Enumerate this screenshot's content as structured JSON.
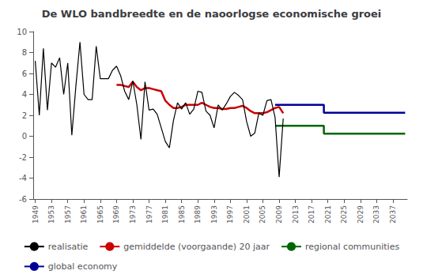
{
  "chart_data": {
    "type": "line",
    "title": "De WLO bandbreedte en de naoorlogse economische groei",
    "series": [
      {
        "name": "realisatie",
        "color": "#000000",
        "x": [
          1949,
          1950,
          1951,
          1952,
          1953,
          1954,
          1955,
          1956,
          1957,
          1958,
          1959,
          1960,
          1961,
          1962,
          1963,
          1964,
          1965,
          1966,
          1967,
          1968,
          1969,
          1970,
          1971,
          1972,
          1973,
          1974,
          1975,
          1976,
          1977,
          1978,
          1979,
          1980,
          1981,
          1982,
          1983,
          1984,
          1985,
          1986,
          1987,
          1988,
          1989,
          1990,
          1991,
          1992,
          1993,
          1994,
          1995,
          1996,
          1997,
          1998,
          1999,
          2000,
          2001,
          2002,
          2003,
          2004,
          2005,
          2006,
          2007,
          2008,
          2009,
          2010
        ],
        "values": [
          7.2,
          2.0,
          8.4,
          2.5,
          7.0,
          6.6,
          7.5,
          4.0,
          7.0,
          0.1,
          4.8,
          9.0,
          4.0,
          3.5,
          3.5,
          8.6,
          5.5,
          5.5,
          5.5,
          6.3,
          6.7,
          5.8,
          4.3,
          3.5,
          5.3,
          3.0,
          -0.3,
          5.2,
          2.5,
          2.6,
          2.1,
          0.8,
          -0.5,
          -1.1,
          1.5,
          3.2,
          2.6,
          3.2,
          2.1,
          2.6,
          4.3,
          4.2,
          2.4,
          2.0,
          0.8,
          3.0,
          2.5,
          3.1,
          3.8,
          4.2,
          3.9,
          3.5,
          1.4,
          0.0,
          0.3,
          2.2,
          2.0,
          3.4,
          3.5,
          1.8,
          -3.9,
          1.7
        ]
      },
      {
        "name": "gemiddelde (voorgaande) 20 jaar",
        "color": "#cc0000",
        "x": [
          1969,
          1970,
          1971,
          1972,
          1973,
          1974,
          1975,
          1976,
          1977,
          1978,
          1979,
          1980,
          1981,
          1982,
          1983,
          1984,
          1985,
          1986,
          1987,
          1988,
          1989,
          1990,
          1991,
          1992,
          1993,
          1994,
          1995,
          1996,
          1997,
          1998,
          1999,
          2000,
          2001,
          2002,
          2003,
          2004,
          2005,
          2006,
          2007,
          2008,
          2009,
          2010
        ],
        "values": [
          4.9,
          4.9,
          4.8,
          4.7,
          5.2,
          4.7,
          4.4,
          4.6,
          4.6,
          4.5,
          4.4,
          4.3,
          3.4,
          3.0,
          2.7,
          2.7,
          2.8,
          3.0,
          3.0,
          3.0,
          3.0,
          3.2,
          3.0,
          2.8,
          2.7,
          2.7,
          2.6,
          2.6,
          2.7,
          2.7,
          2.8,
          2.9,
          2.7,
          2.4,
          2.2,
          2.2,
          2.2,
          2.3,
          2.5,
          2.7,
          2.8,
          2.2
        ]
      },
      {
        "name": "regional communities",
        "color": "#006600",
        "x": [
          2008,
          2020,
          2020,
          2040
        ],
        "values": [
          1.0,
          1.0,
          0.25,
          0.25
        ]
      },
      {
        "name": "global economy",
        "color": "#000099",
        "x": [
          2008,
          2020,
          2020,
          2040
        ],
        "values": [
          3.0,
          3.0,
          2.25,
          2.25
        ]
      }
    ],
    "xlim": [
      1948.5,
      2040.5
    ],
    "xticks": [
      1949,
      1953,
      1957,
      1961,
      1965,
      1969,
      1973,
      1977,
      1981,
      1985,
      1989,
      1993,
      1997,
      2001,
      2005,
      2009,
      2013,
      2017,
      2021,
      2025,
      2029,
      2033,
      2037
    ],
    "ylim": [
      -6,
      10
    ],
    "yticks": [
      -6,
      -4,
      -2,
      0,
      2,
      4,
      6,
      8,
      10
    ],
    "grid": false,
    "legend": "bottom"
  }
}
